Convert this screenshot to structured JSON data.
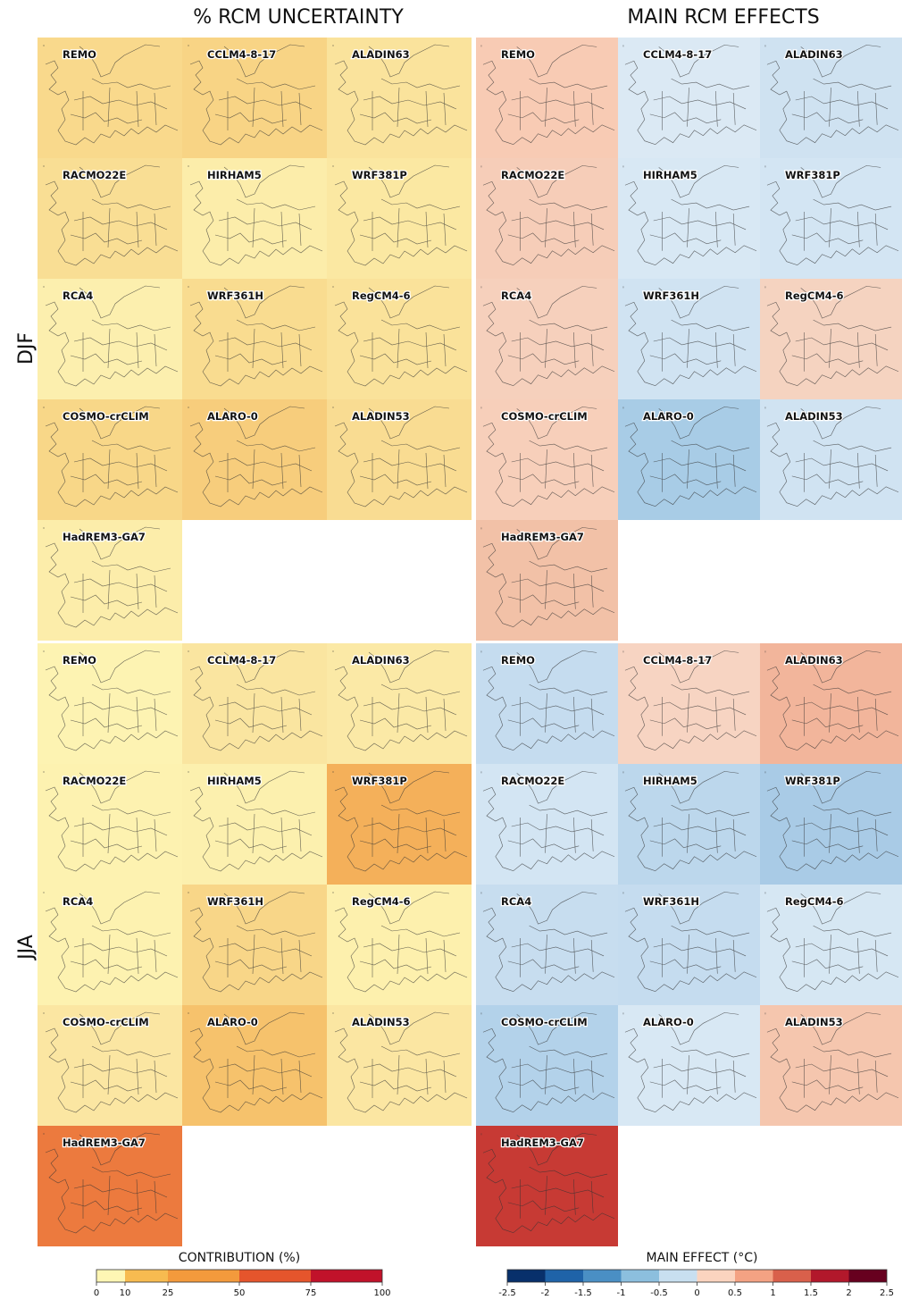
{
  "titles": {
    "left": "% RCM UNCERTAINTY",
    "right": "MAIN RCM EFFECTS"
  },
  "seasons": [
    "DJF",
    "JJA"
  ],
  "models": [
    "REMO",
    "CCLM4-8-17",
    "ALADIN63",
    "RACMO22E",
    "HIRHAM5",
    "WRF381P",
    "RCA4",
    "WRF361H",
    "RegCM4-6",
    "COSMO-crCLIM",
    "ALARO-0",
    "ALADIN53",
    "HadREM3-GA7"
  ],
  "maps": {
    "DJF": {
      "uncertainty": [
        "#f9d98c",
        "#f8d485",
        "#fae39c",
        "#f9de94",
        "#fcedaa",
        "#fbe8a2",
        "#fcefae",
        "#f9dc90",
        "#fae29a",
        "#f8d788",
        "#f7cd7c",
        "#f9dc92",
        "#fcedaa"
      ],
      "effect": [
        "#f8cbb4",
        "#dbe9f4",
        "#cfe2f1",
        "#f6cdb8",
        "#d8e8f4",
        "#d3e5f3",
        "#f6d0bc",
        "#d0e3f2",
        "#f5d3c0",
        "#f7cfba",
        "#a8cce6",
        "#d0e3f2",
        "#f2c1a7"
      ]
    },
    "JJA": {
      "uncertainty": [
        "#fdf3b2",
        "#fae5a0",
        "#fbe9a6",
        "#fdf2b0",
        "#fcf0ae",
        "#f4b05a",
        "#fdf2b0",
        "#f8d688",
        "#fdf0ad",
        "#fbe6a2",
        "#f6c26c",
        "#fbe6a2",
        "#ec7a3e"
      ],
      "effect": [
        "#c5dcef",
        "#f7d4c2",
        "#f2b59b",
        "#d3e5f3",
        "#bcd7ec",
        "#a9cbe6",
        "#c7ddef",
        "#c5dcef",
        "#d6e7f3",
        "#b3d2ea",
        "#d8e8f4",
        "#f5c6ae",
        "#c73a34"
      ]
    }
  },
  "colorbars": [
    {
      "label": "CONTRIBUTION (%)",
      "lim": [
        0,
        100
      ],
      "ticks": [
        0,
        10,
        25,
        50,
        75,
        100
      ],
      "colors": [
        "#fef6b4",
        "#f7bb50",
        "#f39a3c",
        "#e5552c",
        "#c1122a"
      ]
    },
    {
      "label": "MAIN EFFECT (°C)",
      "lim": [
        -2.5,
        2.5
      ],
      "ticks": [
        -2.5,
        -2,
        -1.5,
        -1,
        -0.5,
        0,
        0.5,
        1,
        1.5,
        2,
        2.5
      ],
      "colors": [
        "#08306b",
        "#1f63a8",
        "#4a8fc4",
        "#8cbfde",
        "#c8dff0",
        "#fbd4bf",
        "#f4a283",
        "#d9604b",
        "#b2182b",
        "#67001f"
      ]
    }
  ]
}
